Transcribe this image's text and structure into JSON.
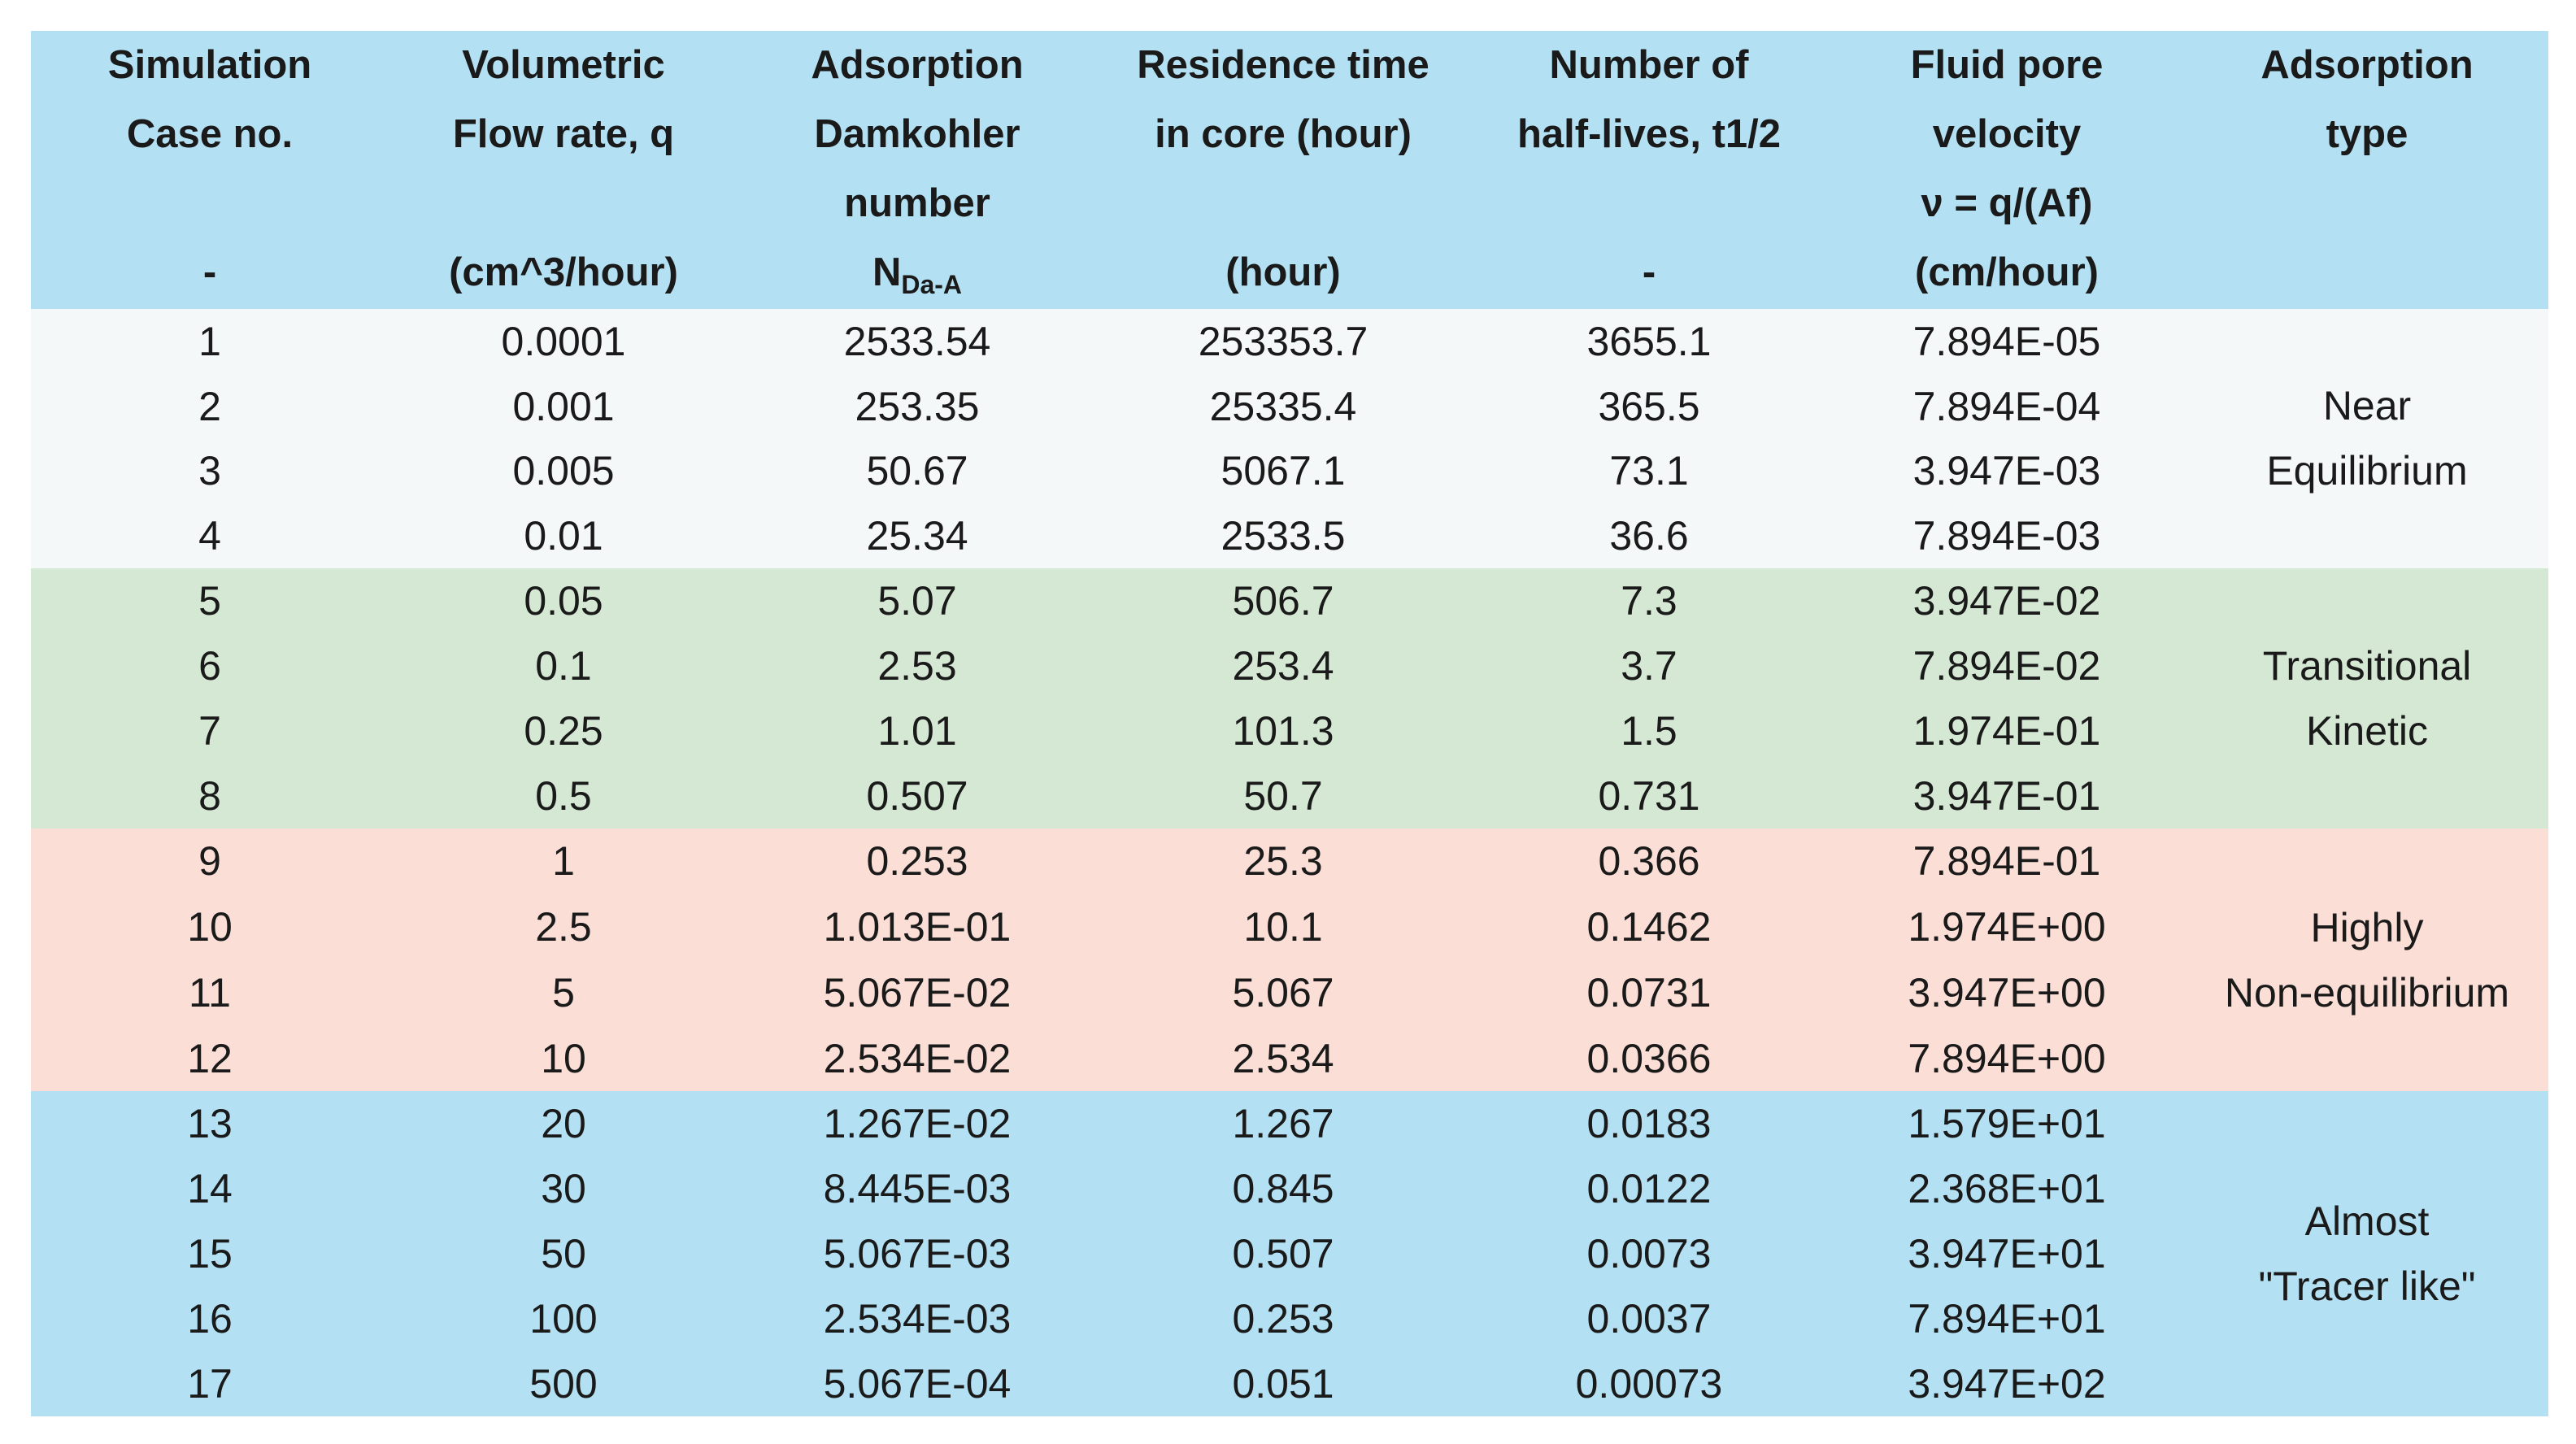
{
  "header": {
    "col1": [
      "Simulation",
      "Case no.",
      "",
      "-"
    ],
    "col2": [
      "Volumetric",
      "Flow rate, q",
      "",
      "(cm^3/hour)"
    ],
    "col3": [
      "Adsorption",
      "Damkohler",
      "number",
      "N",
      "Da-A"
    ],
    "col4": [
      "Residence time",
      "in core  (hour)",
      "",
      "(hour)"
    ],
    "col5": [
      "Number of",
      "half-lives, t1/2",
      "",
      "-"
    ],
    "col6": [
      "Fluid pore",
      "velocity",
      "ν = q/(Af)",
      "(cm/hour)"
    ],
    "col7": [
      "Adsorption",
      "type"
    ]
  },
  "rows": [
    {
      "case": "1",
      "q": "0.0001",
      "nda": "2533.54",
      "res": "253353.7",
      "half": "3655.1",
      "vel": "7.894E-05"
    },
    {
      "case": "2",
      "q": "0.001",
      "nda": "253.35",
      "res": "25335.4",
      "half": "365.5",
      "vel": "7.894E-04"
    },
    {
      "case": "3",
      "q": "0.005",
      "nda": "50.67",
      "res": "5067.1",
      "half": "73.1",
      "vel": "3.947E-03"
    },
    {
      "case": "4",
      "q": "0.01",
      "nda": "25.34",
      "res": "2533.5",
      "half": "36.6",
      "vel": "7.894E-03"
    },
    {
      "case": "5",
      "q": "0.05",
      "nda": "5.07",
      "res": "506.7",
      "half": "7.3",
      "vel": "3.947E-02"
    },
    {
      "case": "6",
      "q": "0.1",
      "nda": "2.53",
      "res": "253.4",
      "half": "3.7",
      "vel": "7.894E-02"
    },
    {
      "case": "7",
      "q": "0.25",
      "nda": "1.01",
      "res": "101.3",
      "half": "1.5",
      "vel": "1.974E-01"
    },
    {
      "case": "8",
      "q": "0.5",
      "nda": "0.507",
      "res": "50.7",
      "half": "0.731",
      "vel": "3.947E-01"
    },
    {
      "case": "9",
      "q": "1",
      "nda": "0.253",
      "res": "25.3",
      "half": "0.366",
      "vel": "7.894E-01"
    },
    {
      "case": "10",
      "q": "2.5",
      "nda": "1.013E-01",
      "res": "10.1",
      "half": "0.1462",
      "vel": "1.974E+00"
    },
    {
      "case": "11",
      "q": "5",
      "nda": "5.067E-02",
      "res": "5.067",
      "half": "0.0731",
      "vel": "3.947E+00"
    },
    {
      "case": "12",
      "q": "10",
      "nda": "2.534E-02",
      "res": "2.534",
      "half": "0.0366",
      "vel": "7.894E+00"
    },
    {
      "case": "13",
      "q": "20",
      "nda": "1.267E-02",
      "res": "1.267",
      "half": "0.0183",
      "vel": "1.579E+01"
    },
    {
      "case": "14",
      "q": "30",
      "nda": "8.445E-03",
      "res": "0.845",
      "half": "0.0122",
      "vel": "2.368E+01"
    },
    {
      "case": "15",
      "q": "50",
      "nda": "5.067E-03",
      "res": "0.507",
      "half": "0.0073",
      "vel": "3.947E+01"
    },
    {
      "case": "16",
      "q": "100",
      "nda": "2.534E-03",
      "res": "0.253",
      "half": "0.0037",
      "vel": "7.894E+01"
    },
    {
      "case": "17",
      "q": "500",
      "nda": "5.067E-04",
      "res": "0.051",
      "half": "0.00073",
      "vel": "3.947E+02"
    }
  ],
  "groups": [
    {
      "label": [
        "Near",
        "Equilibrium"
      ],
      "color": "#f5f8f8"
    },
    {
      "label": [
        "Transitional",
        "Kinetic"
      ],
      "color": "#d5e8d4"
    },
    {
      "label": [
        "Highly",
        "Non-equilibrium"
      ],
      "color": "#fbdfd6"
    },
    {
      "label": [
        "Almost",
        "\"Tracer like\""
      ],
      "color": "#b3e0f2"
    }
  ]
}
